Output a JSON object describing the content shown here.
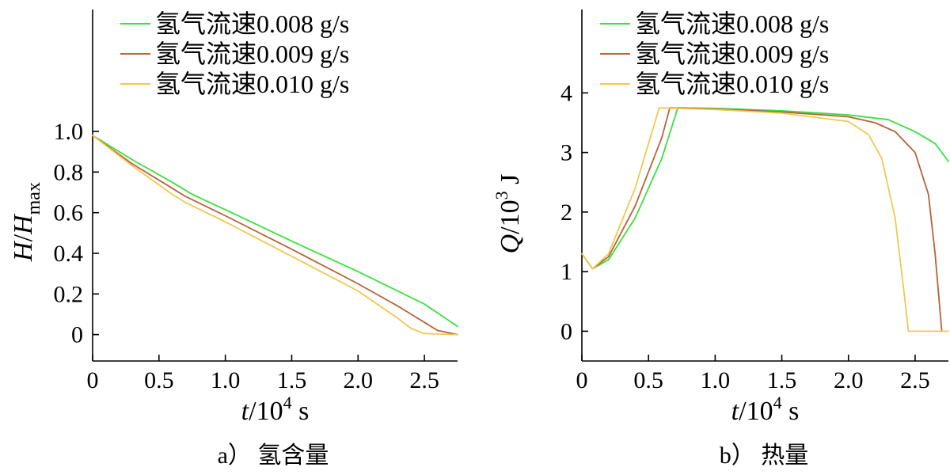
{
  "chart_data": [
    {
      "type": "line",
      "panel_caption": "a） 氢含量",
      "xlabel": {
        "var": "t",
        "unit_prefix": "/10",
        "exp": "4",
        "unit": " s"
      },
      "ylabel": {
        "var": "H",
        "sep": "/",
        "var2": "H",
        "sub": "max"
      },
      "xlim": [
        0,
        2.75
      ],
      "ylim": [
        -0.13,
        1.6
      ],
      "xticks": [
        "0",
        "0.5",
        "1.0",
        "1.5",
        "2.0",
        "2.5"
      ],
      "xtick_values": [
        0,
        0.5,
        1.0,
        1.5,
        2.0,
        2.5
      ],
      "yticks": [
        "0",
        "0.2",
        "0.4",
        "0.6",
        "0.8",
        "1.0"
      ],
      "ytick_values": [
        0,
        0.2,
        0.4,
        0.6,
        0.8,
        1.0
      ],
      "series": [
        {
          "name": "氢气流速0.008 g/s",
          "color": "#3de03d",
          "x": [
            0,
            0.3,
            0.6,
            0.75,
            1.0,
            1.5,
            2.0,
            2.5,
            2.75
          ],
          "y": [
            0.98,
            0.86,
            0.75,
            0.69,
            0.615,
            0.46,
            0.31,
            0.15,
            0.04
          ]
        },
        {
          "name": "氢气流速0.009 g/s",
          "color": "#b5633a",
          "x": [
            0,
            0.3,
            0.6,
            0.7,
            1.0,
            1.5,
            2.0,
            2.3,
            2.5,
            2.6,
            2.75
          ],
          "y": [
            0.98,
            0.84,
            0.72,
            0.68,
            0.585,
            0.42,
            0.25,
            0.14,
            0.06,
            0.02,
            0.0
          ]
        },
        {
          "name": "氢气流速0.010 g/s",
          "color": "#f0c850",
          "x": [
            0,
            0.3,
            0.6,
            0.7,
            1.0,
            1.5,
            2.0,
            2.3,
            2.4,
            2.5,
            2.75
          ],
          "y": [
            0.98,
            0.83,
            0.69,
            0.65,
            0.555,
            0.385,
            0.215,
            0.08,
            0.03,
            0.005,
            0.0
          ]
        }
      ]
    },
    {
      "type": "line",
      "panel_caption": "b） 热量",
      "xlabel": {
        "var": "t",
        "unit_prefix": "/10",
        "exp": "4",
        "unit": " s"
      },
      "ylabel": {
        "var": "Q",
        "unit_prefix": "/10",
        "exp": "3",
        "unit": " J"
      },
      "xlim": [
        0,
        2.75
      ],
      "ylim": [
        -0.5,
        5.4
      ],
      "xticks": [
        "0",
        "0.5",
        "1.0",
        "1.5",
        "2.0",
        "2.5"
      ],
      "xtick_values": [
        0,
        0.5,
        1.0,
        1.5,
        2.0,
        2.5
      ],
      "yticks": [
        "0",
        "1",
        "2",
        "3",
        "4"
      ],
      "ytick_values": [
        0,
        1,
        2,
        3,
        4
      ],
      "series": [
        {
          "name": "氢气流速0.008 g/s",
          "color": "#3de03d",
          "x": [
            0,
            0.08,
            0.2,
            0.4,
            0.6,
            0.72,
            1.0,
            1.5,
            2.0,
            2.3,
            2.5,
            2.65,
            2.75
          ],
          "y": [
            1.3,
            1.05,
            1.2,
            1.9,
            2.9,
            3.75,
            3.74,
            3.7,
            3.63,
            3.55,
            3.35,
            3.15,
            2.85
          ]
        },
        {
          "name": "氢气流速0.009 g/s",
          "color": "#b5633a",
          "x": [
            0,
            0.08,
            0.2,
            0.4,
            0.6,
            0.66,
            1.0,
            1.5,
            2.0,
            2.2,
            2.35,
            2.5,
            2.6,
            2.65,
            2.7
          ],
          "y": [
            1.3,
            1.05,
            1.25,
            2.1,
            3.25,
            3.75,
            3.73,
            3.68,
            3.6,
            3.5,
            3.35,
            3.0,
            2.3,
            1.3,
            0.0
          ]
        },
        {
          "name": "氢气流速0.010 g/s",
          "color": "#f0c850",
          "x": [
            0,
            0.08,
            0.2,
            0.4,
            0.58,
            1.0,
            1.5,
            2.0,
            2.15,
            2.25,
            2.35,
            2.42,
            2.45,
            2.75
          ],
          "y": [
            1.3,
            1.05,
            1.3,
            2.4,
            3.75,
            3.72,
            3.66,
            3.52,
            3.3,
            2.9,
            1.9,
            0.6,
            0.0,
            0.0
          ]
        }
      ]
    }
  ]
}
